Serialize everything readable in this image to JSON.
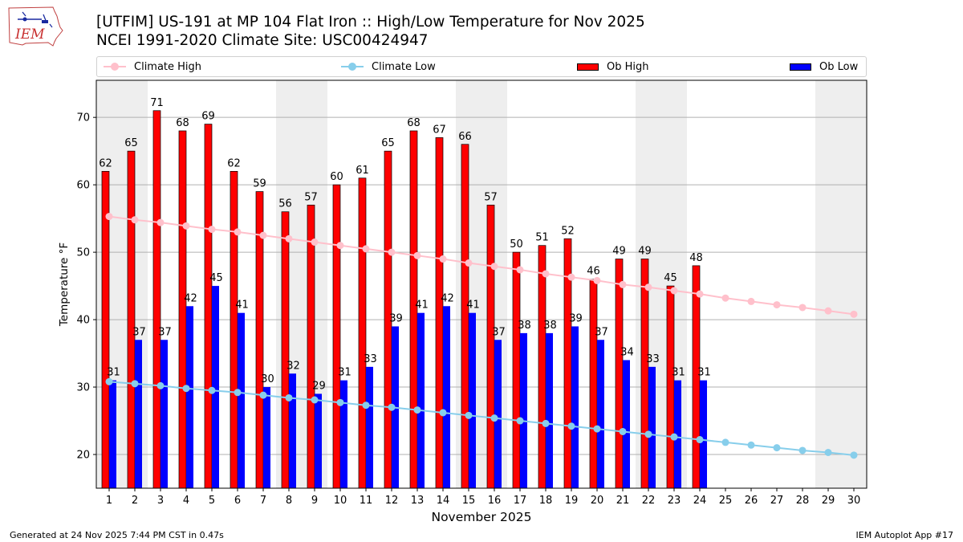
{
  "title_line1": "[UTFIM] US-191 at MP 104 Flat Iron  :: High/Low Temperature for Nov 2025",
  "title_line2": "NCEI 1991-2020 Climate Site: USC00424947",
  "logo_text": "IEM",
  "footer_left": "Generated at 24 Nov 2025 7:44 PM CST in 0.47s",
  "footer_right": "IEM Autoplot App #17",
  "colors": {
    "climate_high": "#ffc0cb",
    "climate_low": "#87ceeb",
    "ob_high": "#ff0000",
    "ob_low": "#0000ff",
    "weekend_shade": "#eeeeee",
    "grid": "#b0b0b0"
  },
  "chart_data": {
    "type": "bar",
    "xlabel": "November 2025",
    "ylabel": "Temperature °F",
    "ylim": [
      15,
      75.5
    ],
    "yticks": [
      20,
      30,
      40,
      50,
      60,
      70
    ],
    "grid": "horizontal",
    "legend_placement": "top",
    "categories": [
      1,
      2,
      3,
      4,
      5,
      6,
      7,
      8,
      9,
      10,
      11,
      12,
      13,
      14,
      15,
      16,
      17,
      18,
      19,
      20,
      21,
      22,
      23,
      24,
      25,
      26,
      27,
      28,
      29,
      30
    ],
    "shaded_days": [
      1,
      2,
      8,
      9,
      15,
      16,
      22,
      23,
      29,
      30
    ],
    "series": [
      {
        "name": "Climate High",
        "kind": "line",
        "values": [
          55.3,
          54.8,
          54.4,
          53.9,
          53.4,
          53.0,
          52.5,
          52.0,
          51.5,
          51.0,
          50.5,
          50.0,
          49.5,
          49.0,
          48.4,
          47.9,
          47.4,
          46.8,
          46.3,
          45.8,
          45.2,
          44.8,
          44.3,
          43.8,
          43.2,
          42.7,
          42.2,
          41.8,
          41.3,
          40.8
        ]
      },
      {
        "name": "Climate Low",
        "kind": "line",
        "values": [
          30.8,
          30.5,
          30.2,
          29.8,
          29.5,
          29.2,
          28.8,
          28.4,
          28.1,
          27.7,
          27.3,
          27.0,
          26.6,
          26.2,
          25.8,
          25.4,
          25.0,
          24.6,
          24.2,
          23.8,
          23.4,
          23.0,
          22.6,
          22.2,
          21.8,
          21.4,
          21.0,
          20.6,
          20.3,
          19.9
        ]
      },
      {
        "name": "Ob High",
        "kind": "bar",
        "values": [
          62,
          65,
          71,
          68,
          69,
          62,
          59,
          56,
          57,
          60,
          61,
          65,
          68,
          67,
          66,
          57,
          50,
          51,
          52,
          46,
          49,
          49,
          45,
          48,
          null,
          null,
          null,
          null,
          null,
          null
        ]
      },
      {
        "name": "Ob Low",
        "kind": "bar",
        "values": [
          31,
          37,
          37,
          42,
          45,
          41,
          30,
          32,
          29,
          31,
          33,
          39,
          41,
          42,
          41,
          37,
          38,
          38,
          39,
          37,
          34,
          33,
          31,
          31,
          null,
          null,
          null,
          null,
          null,
          null
        ]
      }
    ]
  }
}
